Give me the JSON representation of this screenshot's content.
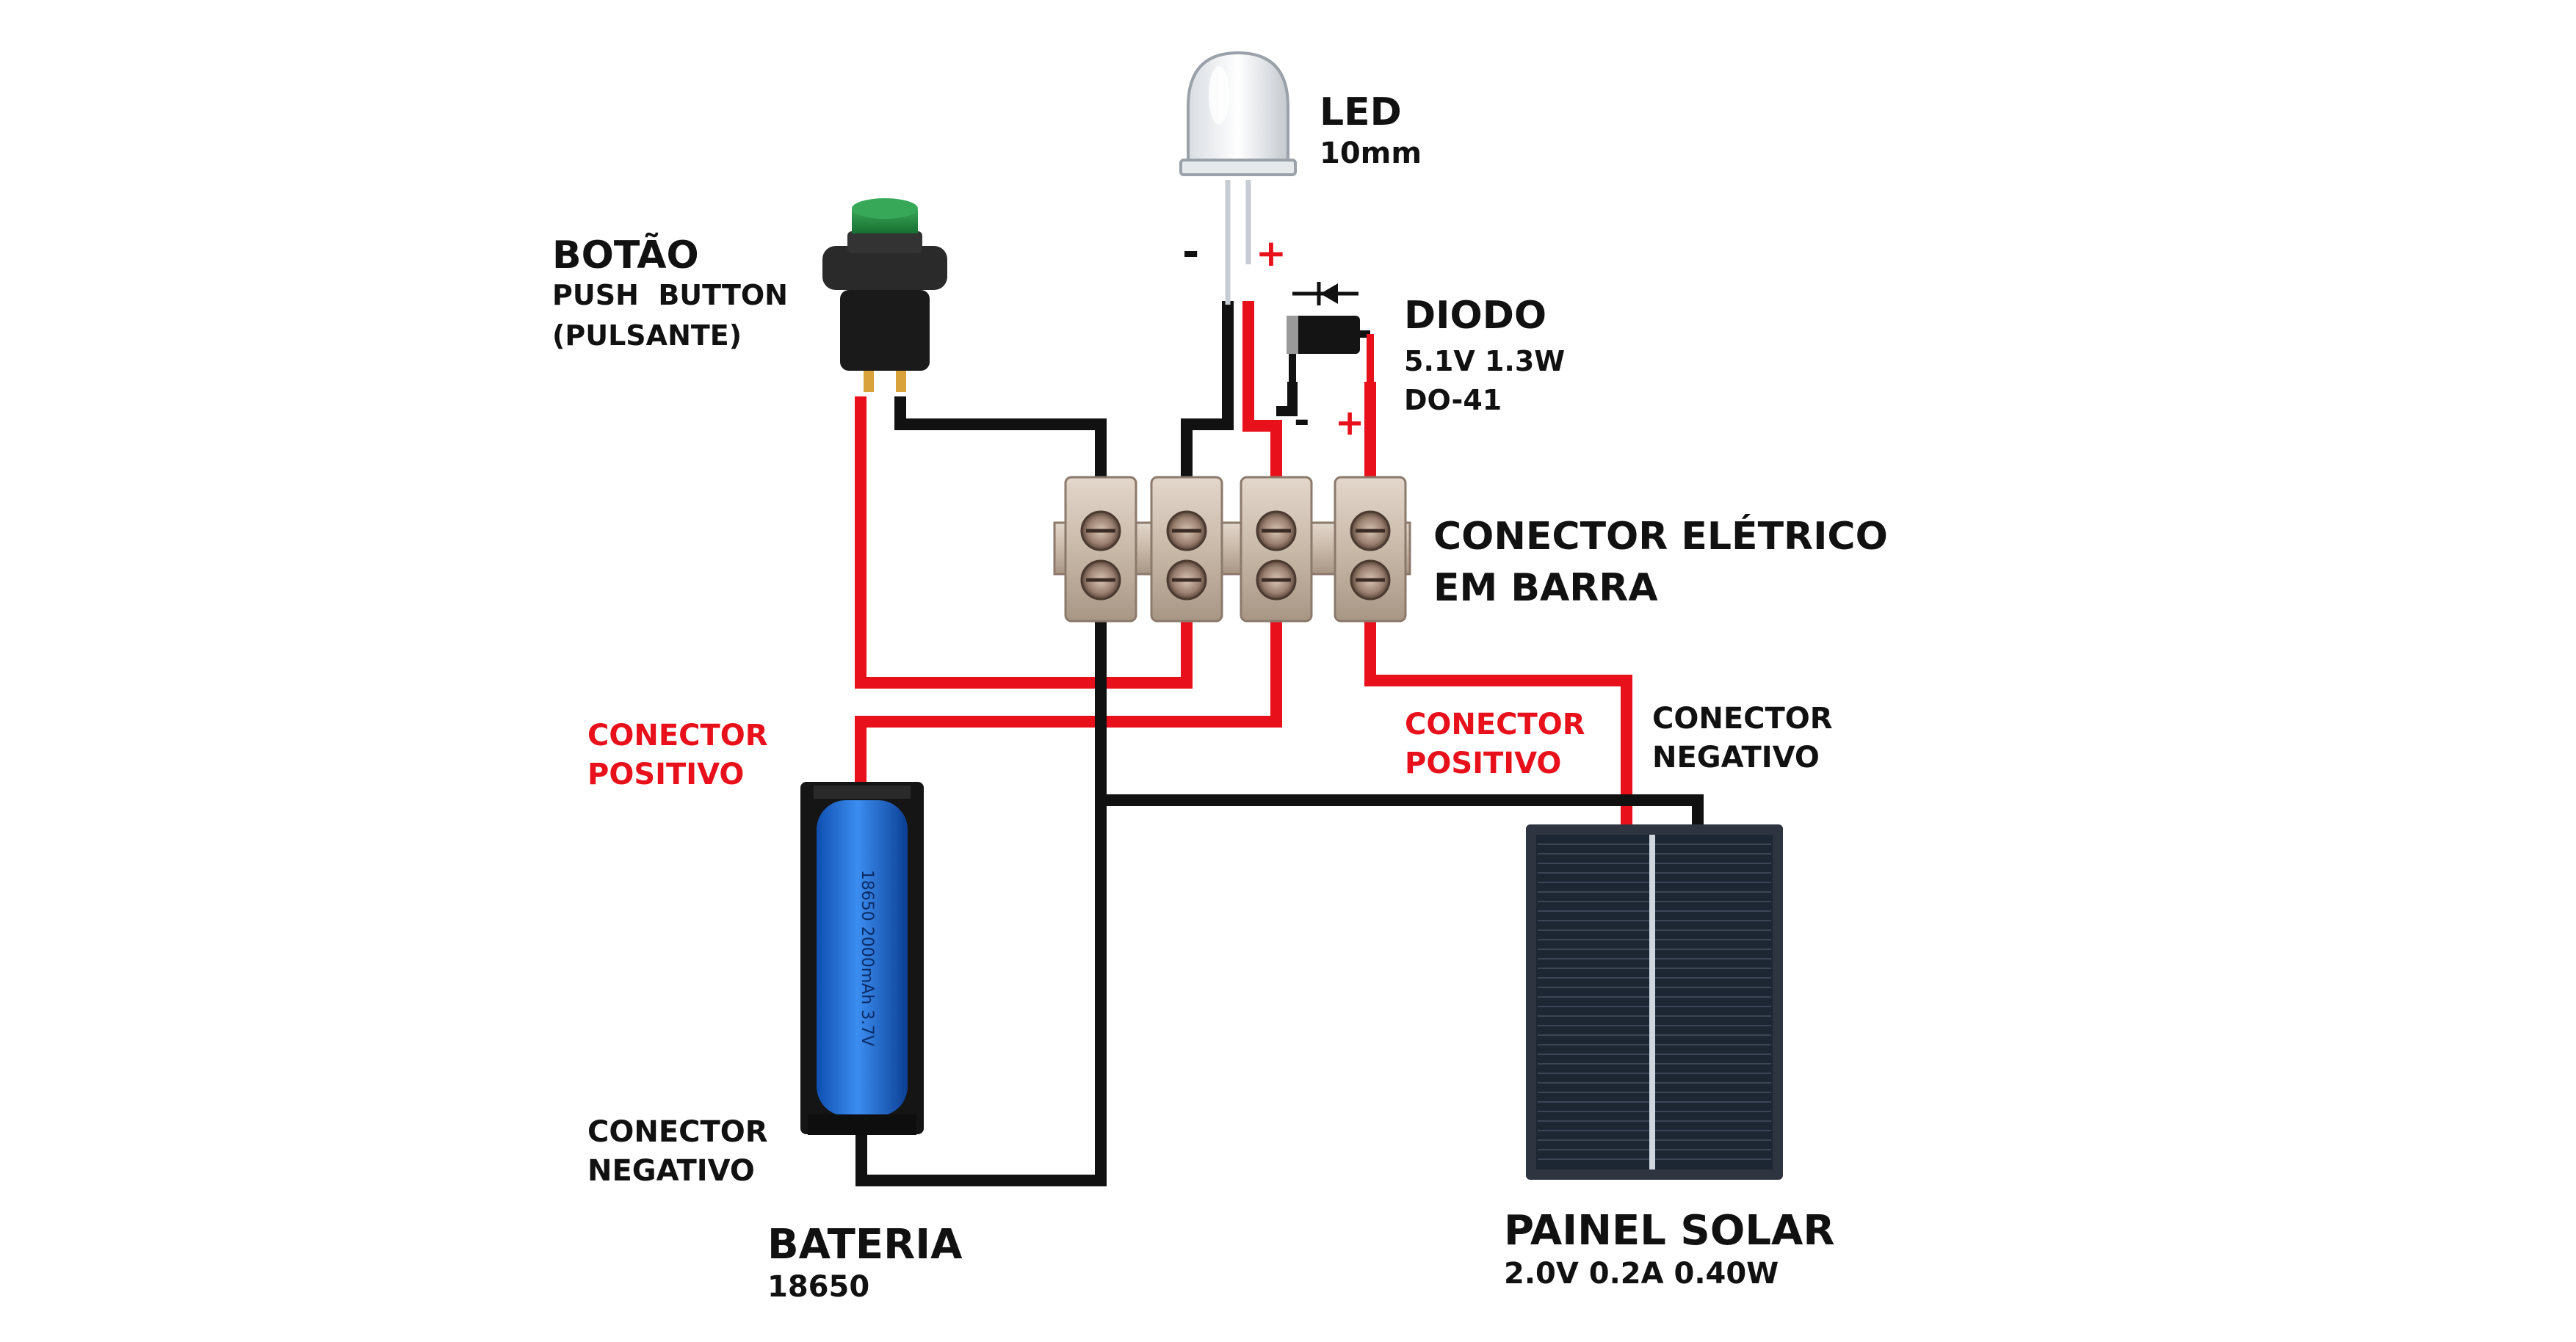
{
  "colors": {
    "wire_positive": "#e8101a",
    "wire_negative": "#111111",
    "battery_body": "#1f6fe0",
    "button_cap": "#1f8a3a",
    "terminal_block": "#c9b9a9",
    "solar_cell": "#1d2633"
  },
  "icons": {
    "led": "led-icon",
    "button": "push-button-icon",
    "diode": "diode-icon",
    "terminal": "terminal-block-icon",
    "battery": "battery-18650-icon",
    "panel": "solar-panel-icon"
  },
  "led": {
    "title": "LED",
    "subtitle": "10mm",
    "neg_sign": "-",
    "pos_sign": "+"
  },
  "button": {
    "title": "BOTÃO",
    "line1": "PUSH  BUTTON",
    "line2": "(PULSANTE)"
  },
  "diode": {
    "title": "DIODO",
    "line1": "5.1V 1.3W",
    "line2": "DO-41",
    "neg_sign": "-",
    "pos_sign": "+"
  },
  "connector_bar": {
    "line1": "CONECTOR ELÉTRICO",
    "line2": "EM BARRA"
  },
  "battery": {
    "title": "BATERIA",
    "subtitle": "18650",
    "pos_line1": "CONECTOR",
    "pos_line2": "POSITIVO",
    "neg_line1": "CONECTOR",
    "neg_line2": "NEGATIVO",
    "cell_text": "18650 2000mAh 3.7V"
  },
  "solar": {
    "title": "PAINEL SOLAR",
    "subtitle": "2.0V 0.2A 0.40W",
    "pos_line1": "CONECTOR",
    "pos_line2": "POSITIVO",
    "neg_line1": "CONECTOR",
    "neg_line2": "NEGATIVO"
  }
}
